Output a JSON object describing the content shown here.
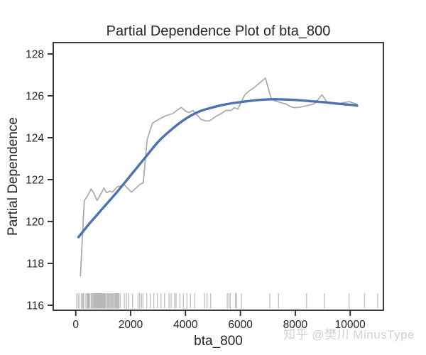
{
  "watermark": {
    "text": "知乎 @樊川 MinusType",
    "color": "#d2d2d2"
  },
  "chart_data": {
    "type": "line",
    "title": "Partial Dependence Plot of bta_800",
    "xlabel": "bta_800",
    "ylabel": "Partial Dependence",
    "xlim": [
      -820,
      11210
    ],
    "ylim": [
      115.76,
      128.54
    ],
    "xticks": [
      0,
      2000,
      4000,
      6000,
      8000,
      10000
    ],
    "yticks": [
      116,
      118,
      120,
      122,
      124,
      126,
      128
    ],
    "grid": false,
    "legend": null,
    "axis_color": "#262626",
    "background": "#ffffff",
    "series": [
      {
        "name": "raw-partial-dependence",
        "color": "#a9a9a9",
        "width": 1.7,
        "smooth": false,
        "points": [
          [
            170,
            117.4
          ],
          [
            310,
            121.0
          ],
          [
            420,
            121.2
          ],
          [
            560,
            121.55
          ],
          [
            650,
            121.37
          ],
          [
            780,
            121.0
          ],
          [
            950,
            121.4
          ],
          [
            1030,
            121.6
          ],
          [
            1120,
            121.37
          ],
          [
            1250,
            121.45
          ],
          [
            1340,
            121.4
          ],
          [
            1510,
            121.65
          ],
          [
            1640,
            121.7
          ],
          [
            1770,
            121.75
          ],
          [
            2030,
            121.4
          ],
          [
            2330,
            121.76
          ],
          [
            2460,
            121.85
          ],
          [
            2600,
            123.9
          ],
          [
            2720,
            124.4
          ],
          [
            2800,
            124.7
          ],
          [
            3060,
            124.9
          ],
          [
            3280,
            125.05
          ],
          [
            3530,
            125.15
          ],
          [
            3840,
            125.45
          ],
          [
            4010,
            125.26
          ],
          [
            4140,
            125.2
          ],
          [
            4270,
            125.3
          ],
          [
            4570,
            124.87
          ],
          [
            4740,
            124.8
          ],
          [
            4870,
            124.8
          ],
          [
            5090,
            125.0
          ],
          [
            5300,
            125.15
          ],
          [
            5470,
            125.3
          ],
          [
            5650,
            125.3
          ],
          [
            5780,
            125.43
          ],
          [
            5910,
            125.37
          ],
          [
            6160,
            126.05
          ],
          [
            6290,
            126.2
          ],
          [
            6510,
            126.4
          ],
          [
            6910,
            126.85
          ],
          [
            7130,
            125.83
          ],
          [
            7240,
            125.77
          ],
          [
            7460,
            125.68
          ],
          [
            7670,
            125.6
          ],
          [
            7850,
            125.47
          ],
          [
            7980,
            125.43
          ],
          [
            8230,
            125.47
          ],
          [
            8580,
            125.58
          ],
          [
            8710,
            125.63
          ],
          [
            8970,
            126.05
          ],
          [
            9140,
            125.72
          ],
          [
            9270,
            125.68
          ],
          [
            9480,
            125.6
          ],
          [
            9700,
            125.66
          ],
          [
            9960,
            125.72
          ],
          [
            10250,
            125.6
          ]
        ]
      },
      {
        "name": "smoothed-trend",
        "color": "#4c72b0",
        "width": 3.4,
        "smooth": true,
        "points": [
          [
            100,
            119.25
          ],
          [
            500,
            119.9
          ],
          [
            1000,
            120.65
          ],
          [
            1500,
            121.4
          ],
          [
            2000,
            122.2
          ],
          [
            2500,
            123.0
          ],
          [
            3000,
            123.8
          ],
          [
            3500,
            124.4
          ],
          [
            4000,
            124.9
          ],
          [
            4500,
            125.25
          ],
          [
            5000,
            125.45
          ],
          [
            5500,
            125.6
          ],
          [
            6000,
            125.7
          ],
          [
            6500,
            125.78
          ],
          [
            7000,
            125.83
          ],
          [
            7500,
            125.83
          ],
          [
            8000,
            125.8
          ],
          [
            8500,
            125.75
          ],
          [
            9000,
            125.7
          ],
          [
            9500,
            125.63
          ],
          [
            10000,
            125.57
          ],
          [
            10250,
            125.53
          ]
        ]
      }
    ],
    "rug": {
      "color": "#8c8c8c",
      "opacity": 0.55,
      "values": [
        30,
        90,
        150,
        215,
        250,
        280,
        345,
        400,
        430,
        455,
        475,
        510,
        560,
        590,
        620,
        655,
        680,
        705,
        730,
        760,
        785,
        810,
        835,
        860,
        880,
        910,
        935,
        960,
        990,
        1015,
        1040,
        1065,
        1095,
        1140,
        1170,
        1200,
        1230,
        1265,
        1300,
        1330,
        1360,
        1400,
        1430,
        1460,
        1490,
        1515,
        1545,
        1570,
        1620,
        1770,
        1845,
        1920,
        2070,
        2270,
        2330,
        2395,
        2450,
        2590,
        2715,
        2845,
        2975,
        3105,
        3235,
        3400,
        3475,
        3605,
        3655,
        3795,
        3920,
        4050,
        4180,
        4335,
        4700,
        4785,
        4915,
        5520,
        5580,
        5630,
        5820,
        5865,
        6035,
        7070,
        7390,
        8410,
        9055,
        9960,
        10520,
        11000
      ]
    }
  }
}
